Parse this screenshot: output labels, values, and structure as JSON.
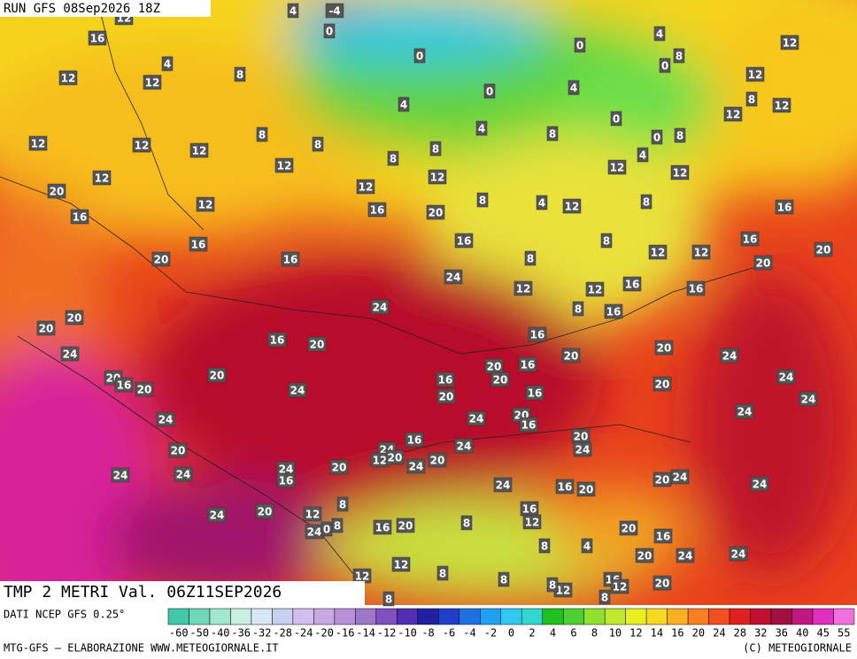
{
  "header": {
    "run": "RUN GFS 08Sep2026 18Z",
    "field": "TMP 2 METRI Val. 06Z11SEP2026"
  },
  "footer": {
    "source": "DATI NCEP GFS 0.25°",
    "credits": "MTG-GFS — ELABORAZIONE WWW.METEOGIORNALE.IT",
    "copyright": "(C) METEOGIORNALE"
  },
  "colorbar": {
    "ticks": [
      -60,
      -50,
      -40,
      -36,
      -32,
      -28,
      -24,
      -20,
      -16,
      -14,
      -12,
      -10,
      -8,
      -6,
      -4,
      -2,
      0,
      2,
      4,
      6,
      8,
      10,
      12,
      14,
      16,
      20,
      24,
      28,
      32,
      36,
      40,
      45,
      55
    ],
    "colors": [
      "#40c8a8",
      "#6fd8b8",
      "#a0e8d0",
      "#c8f0e0",
      "#d8e8f0",
      "#c8d0f0",
      "#d0c0f0",
      "#c8a8e0",
      "#b890d8",
      "#a078c8",
      "#8050c0",
      "#5030b0",
      "#2020a0",
      "#2040c8",
      "#2070e0",
      "#20a0f0",
      "#30c8f0",
      "#30d8d0",
      "#20c020",
      "#50d030",
      "#90e030",
      "#c0e830",
      "#e8f020",
      "#f8d820",
      "#f8b020",
      "#f88020",
      "#f05020",
      "#e02020",
      "#c01030",
      "#a01040",
      "#c01880",
      "#e030c0",
      "#f070e0"
    ]
  },
  "temperature_labels": [
    12,
    4,
    -4,
    16,
    0,
    4,
    12,
    12,
    8,
    0,
    0,
    4,
    8,
    0,
    12,
    12,
    4,
    0,
    4,
    8,
    12,
    12,
    0,
    4,
    8,
    0,
    8,
    8,
    12,
    12,
    12,
    8,
    8,
    8,
    4,
    12,
    12,
    12,
    12,
    12,
    12,
    20,
    8,
    4,
    12,
    8,
    12,
    16,
    20,
    16,
    16,
    16,
    8,
    16,
    16,
    12,
    12,
    20,
    20,
    16,
    8,
    20,
    24,
    12,
    12,
    16,
    16,
    8,
    16,
    24,
    20,
    20,
    16,
    20,
    16,
    20,
    24,
    20,
    16,
    20,
    24,
    20,
    16,
    20,
    20,
    16,
    20,
    24,
    24,
    20,
    16,
    20,
    24,
    24,
    24,
    24,
    20,
    16,
    16,
    24,
    24,
    20,
    20,
    24,
    12,
    20,
    24,
    20,
    24,
    24,
    24,
    16,
    20,
    20,
    24,
    24,
    24,
    16,
    20,
    8,
    20,
    24,
    12,
    16,
    12,
    8,
    16,
    20,
    24,
    0,
    8,
    20,
    16,
    8,
    4,
    12,
    20,
    24,
    24,
    8,
    16,
    12,
    8,
    12,
    20,
    12,
    8,
    8,
    8
  ]
}
